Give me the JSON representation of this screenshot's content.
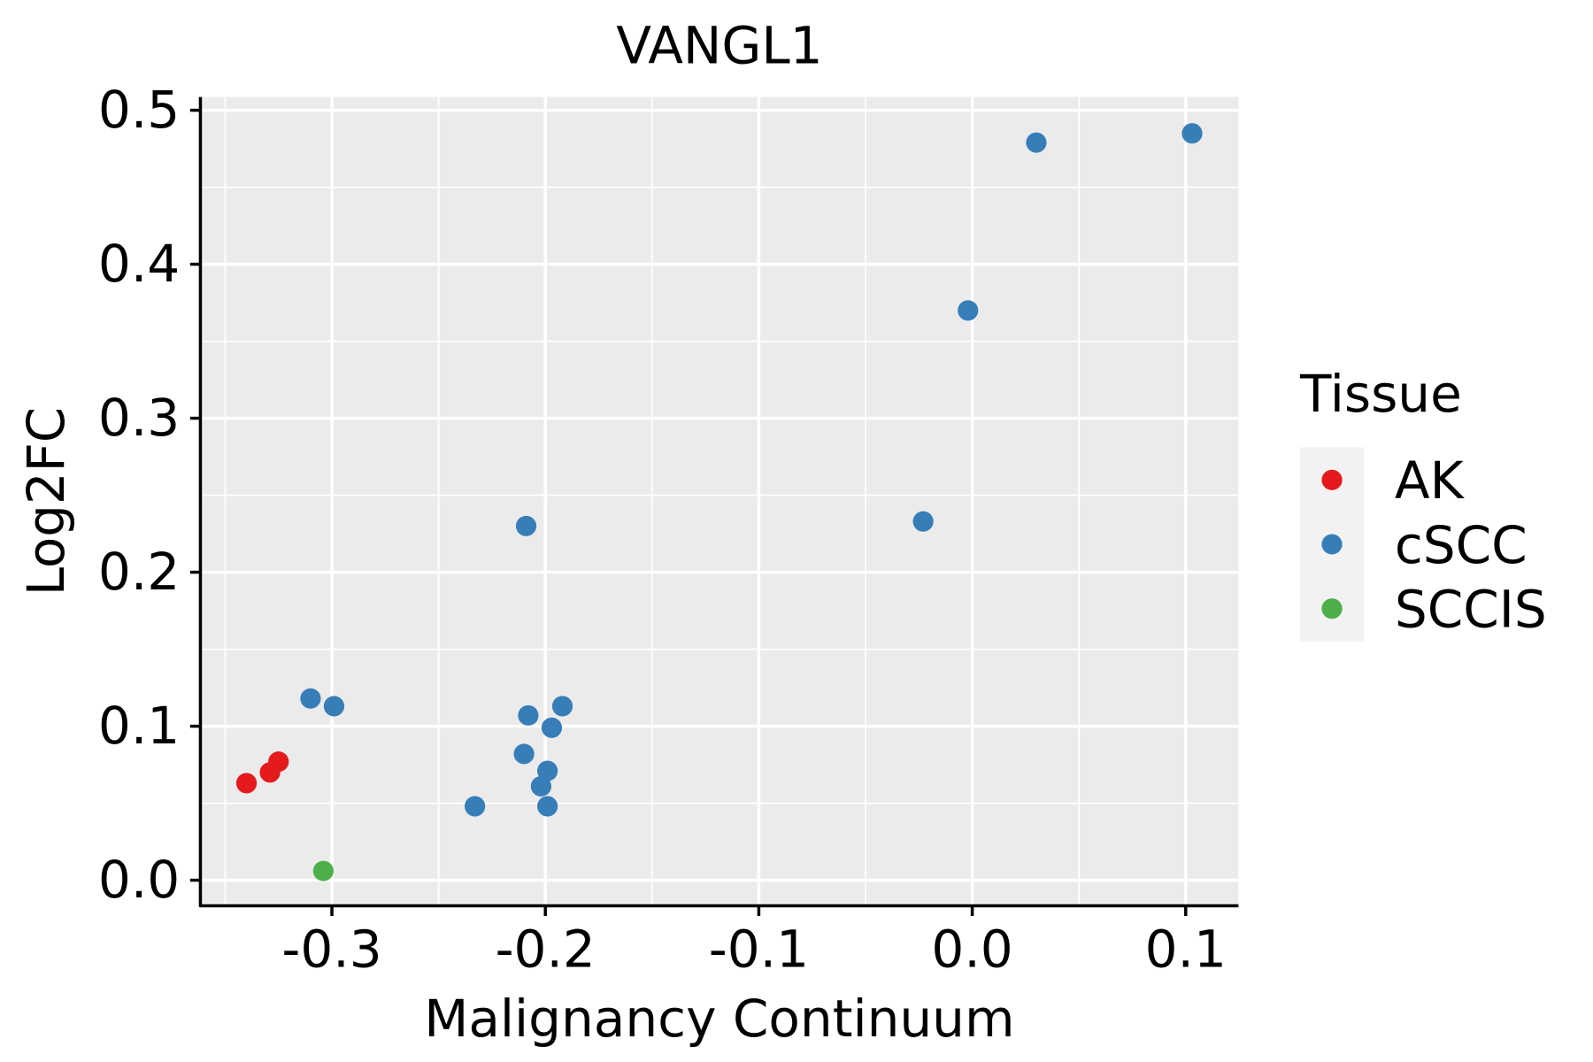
{
  "chart_data": {
    "type": "scatter",
    "title": "VANGL1",
    "xlabel": "Malignancy Continuum",
    "ylabel": "Log2FC",
    "xlim": [
      -0.3616,
      0.1247
    ],
    "ylim": [
      -0.0166,
      0.5086
    ],
    "xticks": [
      -0.3,
      -0.2,
      -0.1,
      0.0,
      0.1
    ],
    "xtick_labels": [
      "-0.3",
      "-0.2",
      "-0.1",
      "0.0",
      "0.1"
    ],
    "yticks": [
      0.0,
      0.1,
      0.2,
      0.3,
      0.4,
      0.5
    ],
    "ytick_labels": [
      "0.0",
      "0.1",
      "0.2",
      "0.3",
      "0.4",
      "0.5"
    ],
    "grid": true,
    "legend": {
      "title": "Tissue",
      "placement": "right"
    },
    "series": [
      {
        "name": "AK",
        "color": "#E41A1C",
        "points": [
          [
            -0.34,
            0.063
          ],
          [
            -0.329,
            0.07
          ],
          [
            -0.325,
            0.077
          ]
        ]
      },
      {
        "name": "cSCC",
        "color": "#377EB8",
        "points": [
          [
            0.103,
            0.485
          ],
          [
            0.03,
            0.479
          ],
          [
            -0.002,
            0.37
          ],
          [
            -0.023,
            0.233
          ],
          [
            -0.209,
            0.23
          ],
          [
            -0.31,
            0.118
          ],
          [
            -0.299,
            0.113
          ],
          [
            -0.208,
            0.107
          ],
          [
            -0.192,
            0.113
          ],
          [
            -0.197,
            0.099
          ],
          [
            -0.21,
            0.082
          ],
          [
            -0.199,
            0.071
          ],
          [
            -0.202,
            0.061
          ],
          [
            -0.233,
            0.048
          ],
          [
            -0.199,
            0.048
          ]
        ]
      },
      {
        "name": "SCCIS",
        "color": "#4DAF4A",
        "points": [
          [
            -0.304,
            0.006
          ]
        ]
      }
    ]
  }
}
